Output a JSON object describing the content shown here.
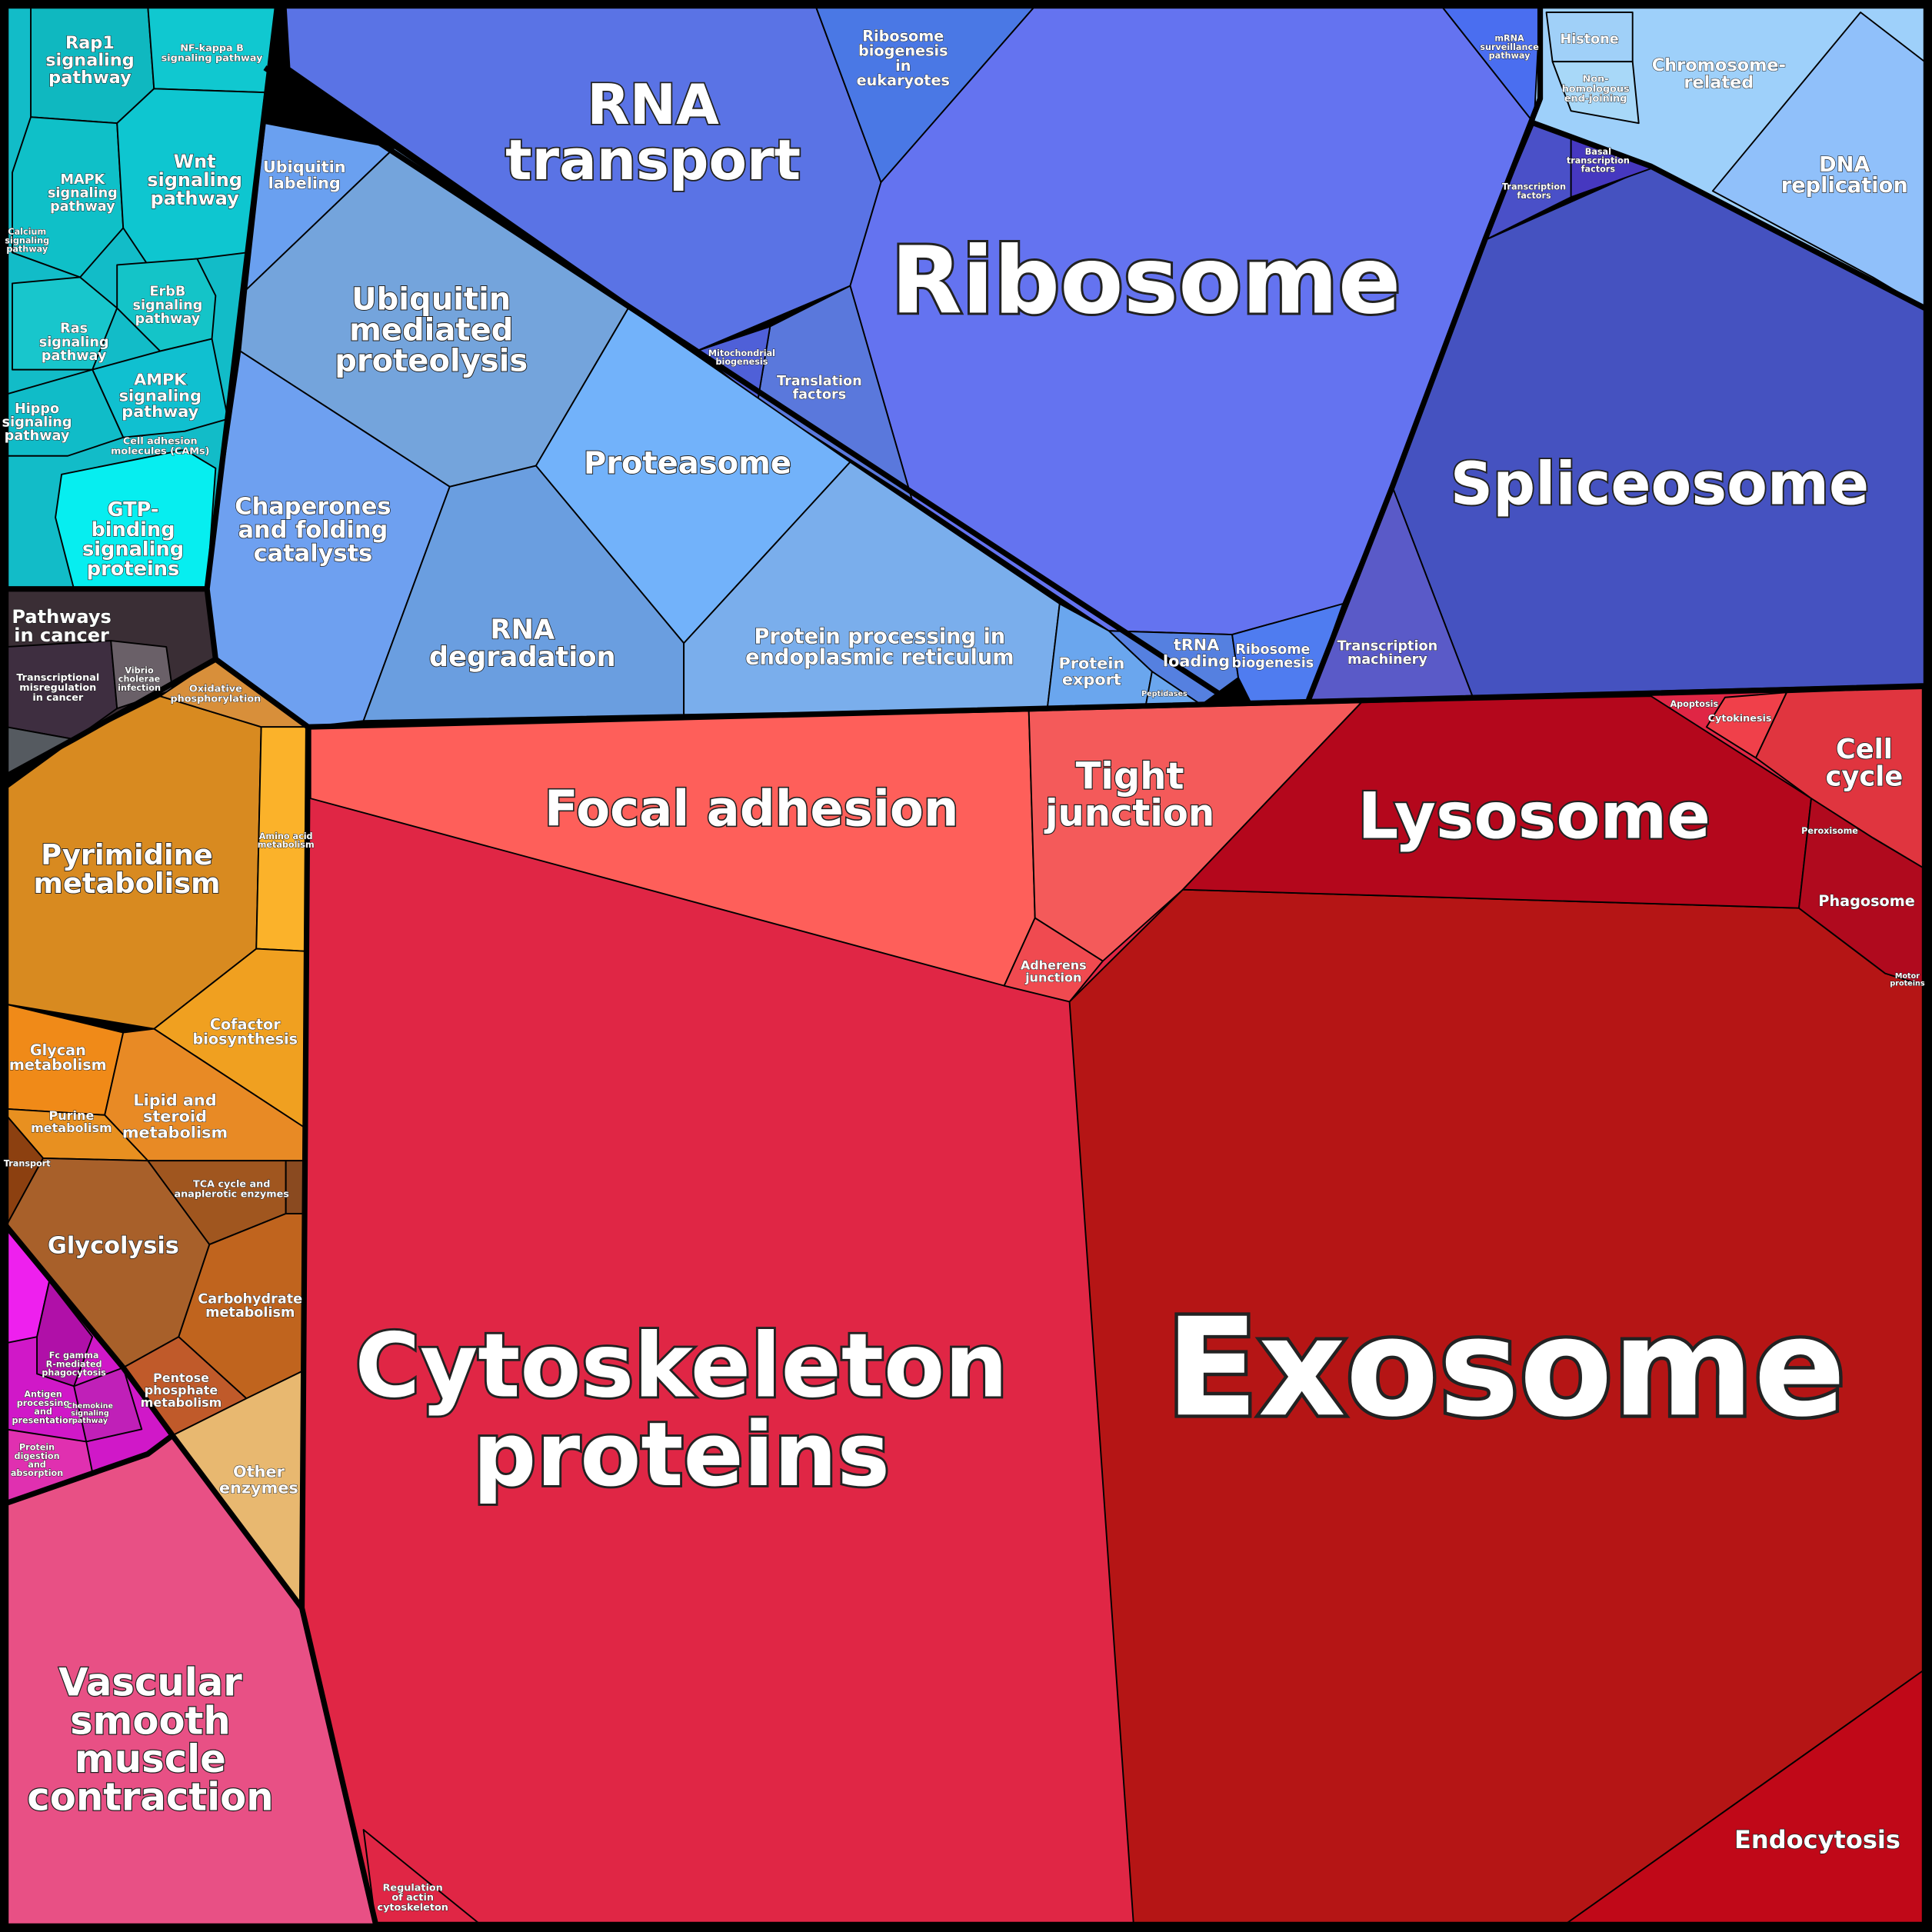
{
  "cells": [
    {
      "label": [
        "Exosome"
      ]
    },
    {
      "label": [
        "Cytoskeleton",
        "proteins"
      ]
    },
    {
      "label": [
        "Ribosome"
      ]
    },
    {
      "label": [
        "Spliceosome"
      ]
    },
    {
      "label": [
        "Lysosome"
      ]
    },
    {
      "label": [
        "RNA",
        "transport"
      ]
    },
    {
      "label": [
        "Focal adhesion"
      ]
    },
    {
      "label": [
        "Tight",
        "junction"
      ]
    },
    {
      "label": [
        "Vascular",
        "smooth",
        "muscle",
        "contraction"
      ]
    },
    {
      "label": [
        "Ubiquitin",
        "mediated",
        "proteolysis"
      ]
    },
    {
      "label": [
        "Proteasome"
      ]
    },
    {
      "label": [
        "Pyrimidine",
        "metabolism"
      ]
    },
    {
      "label": [
        "Chaperones",
        "and folding",
        "catalysts"
      ]
    },
    {
      "label": [
        "RNA",
        "degradation"
      ]
    },
    {
      "label": [
        "Protein processing in",
        "endoplasmic reticulum"
      ]
    },
    {
      "label": [
        "Cell",
        "cycle"
      ]
    },
    {
      "label": [
        "DNA",
        "replication"
      ]
    },
    {
      "label": [
        "Chromosome-",
        "related"
      ]
    },
    {
      "label": [
        "Endocytosis"
      ]
    },
    {
      "label": [
        "Glycolysis"
      ]
    },
    {
      "label": [
        "GTP-",
        "binding",
        "signaling",
        "proteins"
      ]
    },
    {
      "label": [
        "Pathways",
        "in cancer"
      ]
    },
    {
      "label": [
        "Wnt",
        "signaling",
        "pathway"
      ]
    },
    {
      "label": [
        "Rap1",
        "signaling",
        "pathway"
      ]
    },
    {
      "label": [
        "MAPK",
        "signaling",
        "pathway"
      ]
    },
    {
      "label": [
        "Ras",
        "signaling",
        "pathway"
      ]
    },
    {
      "label": [
        "ErbB",
        "signaling",
        "pathway"
      ]
    },
    {
      "label": [
        "AMPK",
        "signaling",
        "pathway"
      ]
    },
    {
      "label": [
        "Hippo",
        "signaling",
        "pathway"
      ]
    },
    {
      "label": [
        "NF-kappa B",
        "signaling pathway"
      ]
    },
    {
      "label": [
        "Ribosome",
        "biogenesis",
        "in",
        "eukaryotes"
      ]
    },
    {
      "label": [
        "Ubiquitin",
        "labeling"
      ]
    },
    {
      "label": [
        "Translation",
        "factors"
      ]
    },
    {
      "label": [
        "Transcription",
        "machinery"
      ]
    },
    {
      "label": [
        "Protein",
        "export"
      ]
    },
    {
      "label": [
        "tRNA",
        "loading"
      ]
    },
    {
      "label": [
        "Ribosome",
        "biogenesis"
      ]
    },
    {
      "label": [
        "Phagosome"
      ]
    },
    {
      "label": [
        "Adherens",
        "junction"
      ]
    },
    {
      "label": [
        "Regulation",
        "of actin",
        "cytoskeleton"
      ]
    },
    {
      "label": [
        "Cofactor",
        "biosynthesis"
      ]
    },
    {
      "label": [
        "Glycan",
        "metabolism"
      ]
    },
    {
      "label": [
        "Lipid and",
        "steroid",
        "metabolism"
      ]
    },
    {
      "label": [
        "Purine",
        "metabolism"
      ]
    },
    {
      "label": [
        "Carbohydrate",
        "metabolism"
      ]
    },
    {
      "label": [
        "Pentose",
        "phosphate",
        "metabolism"
      ]
    },
    {
      "label": [
        "Other",
        "enzymes"
      ]
    },
    {
      "label": [
        "TCA cycle and",
        "anaplerotic enzymes"
      ]
    },
    {
      "label": [
        "Transport"
      ]
    },
    {
      "label": [
        "Histone"
      ]
    },
    {
      "label": [
        "Non-",
        "homologous",
        "end-joining"
      ]
    },
    {
      "label": [
        "mRNA",
        "surveillance",
        "pathway"
      ]
    },
    {
      "label": [
        "Basal",
        "transcription",
        "factors"
      ]
    },
    {
      "label": [
        "Transcription",
        "factors"
      ]
    },
    {
      "label": [
        "Mitochondrial",
        "biogenesis"
      ]
    },
    {
      "label": [
        "Cytokinesis"
      ]
    },
    {
      "label": [
        "Apoptosis"
      ]
    },
    {
      "label": [
        "Peroxisome"
      ]
    },
    {
      "label": [
        "Transcriptional",
        "misregulation",
        "in cancer"
      ]
    },
    {
      "label": [
        "Oxidative",
        "phosphorylation"
      ]
    },
    {
      "label": [
        "Fc gamma",
        "R-mediated",
        "phagocytosis"
      ]
    },
    {
      "label": [
        "Antigen",
        "processing",
        "and",
        "presentation"
      ]
    },
    {
      "label": [
        "Protein",
        "digestion",
        "and",
        "absorption"
      ]
    },
    {
      "label": [
        "Motor",
        "proteins"
      ]
    },
    {
      "label": [
        "Peptidases"
      ]
    },
    {
      "label": [
        "Calcium",
        "signaling",
        "pathway"
      ]
    },
    {
      "label": [
        "Cell adhesion",
        "molecules (CAMs)"
      ]
    },
    {
      "label": [
        "Amino acid",
        "metabolism"
      ]
    },
    {
      "label": [
        "Chemokine",
        "signaling",
        "pathway"
      ]
    },
    {
      "label": [
        "Vibrio",
        "cholerae",
        "infection"
      ]
    }
  ]
}
